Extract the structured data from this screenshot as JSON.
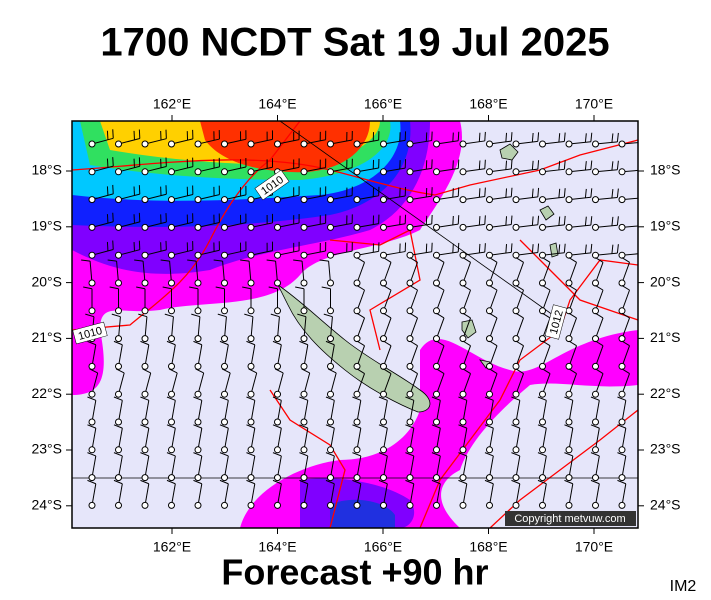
{
  "header": {
    "title": "1700 NCDT Sat 19 Jul 2025"
  },
  "map": {
    "lon_labels": [
      "162°E",
      "164°E",
      "166°E",
      "168°E",
      "170°E"
    ],
    "lat_labels": [
      "18°S",
      "19°S",
      "20°S",
      "21°S",
      "22°S",
      "23°S",
      "24°S"
    ],
    "isobar_labels": [
      "1010",
      "1010",
      "1012"
    ],
    "copyright": "Copyright metvuw.com"
  },
  "footer": {
    "subtitle": "Forecast +90 hr",
    "code": "IM2"
  }
}
